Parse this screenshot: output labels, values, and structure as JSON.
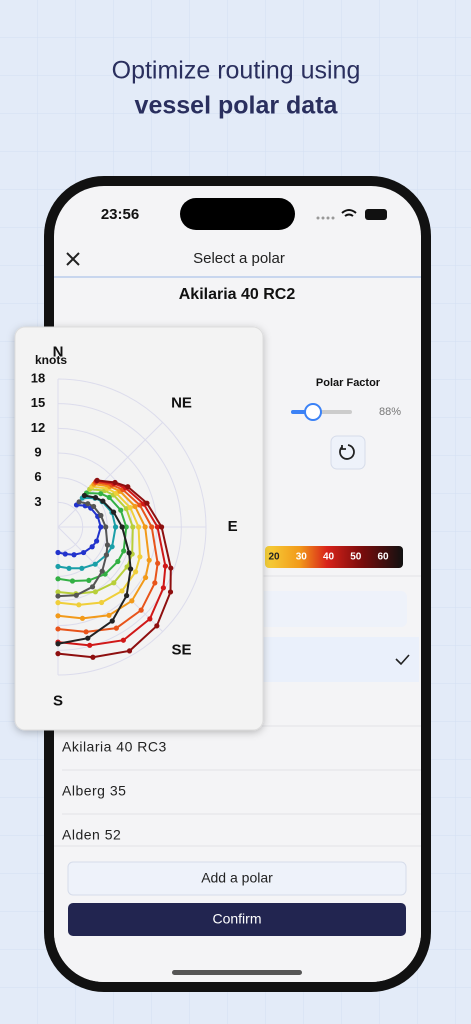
{
  "header": {
    "line1": "Optimize routing using",
    "line2": "vessel polar data"
  },
  "status_bar": {
    "time": "23:56"
  },
  "nav": {
    "title": "Select a polar"
  },
  "polar_name": "Akilaria 40 RC2",
  "polar_factor": {
    "label": "Polar Factor",
    "value": "88%"
  },
  "color_scale": {
    "ticks": [
      20,
      30,
      40,
      50,
      60
    ]
  },
  "list": {
    "items": [
      "Akilaria 40 RC3",
      "Alberg 35",
      "Alden 52"
    ]
  },
  "buttons": {
    "add": "Add a polar",
    "confirm": "Confirm"
  },
  "chart_data": {
    "type": "polar",
    "unit_label": "knots",
    "rlim": [
      0,
      18
    ],
    "rticks": [
      3,
      6,
      9,
      12,
      15,
      18
    ],
    "angle_ticks": [
      {
        "value": 0,
        "label": "N"
      },
      {
        "value": 45,
        "label": "NE"
      },
      {
        "value": 90,
        "label": "E"
      },
      {
        "value": 135,
        "label": "SE"
      },
      {
        "value": 180,
        "label": "S"
      }
    ],
    "angles": [
      40,
      52,
      60,
      75,
      90,
      110,
      120,
      135,
      150,
      165,
      180
    ],
    "series": [
      {
        "color": "#2233cc",
        "values": [
          3.5,
          4.2,
          4.6,
          5.0,
          5.2,
          5.0,
          4.8,
          4.4,
          3.9,
          3.4,
          3.1
        ]
      },
      {
        "color": "#1a9fa8",
        "values": [
          4.6,
          5.7,
          6.2,
          6.8,
          7.0,
          7.0,
          6.8,
          6.4,
          5.8,
          5.2,
          4.8
        ]
      },
      {
        "color": "#33b044",
        "values": [
          5.4,
          6.6,
          7.2,
          7.9,
          8.3,
          8.5,
          8.4,
          8.1,
          7.5,
          6.8,
          6.3
        ]
      },
      {
        "color": "#b8cf3a",
        "values": [
          6.0,
          7.2,
          7.8,
          8.6,
          9.1,
          9.6,
          9.7,
          9.6,
          9.1,
          8.4,
          7.9
        ]
      },
      {
        "color": "#f0cf3a",
        "values": [
          6.4,
          7.6,
          8.2,
          9.1,
          9.8,
          10.6,
          10.9,
          11.0,
          10.6,
          9.8,
          9.2
        ]
      },
      {
        "color": "#f29a1a",
        "values": [
          6.8,
          8.0,
          8.7,
          9.7,
          10.6,
          11.8,
          12.3,
          12.7,
          12.4,
          11.5,
          10.8
        ]
      },
      {
        "color": "#e8541a",
        "values": [
          7.1,
          8.3,
          9.1,
          10.3,
          11.4,
          12.9,
          13.6,
          14.3,
          14.2,
          13.2,
          12.4
        ]
      },
      {
        "color": "#d01818",
        "values": [
          7.3,
          8.6,
          9.5,
          10.8,
          12.1,
          13.9,
          14.8,
          15.8,
          15.9,
          14.9,
          14.0
        ]
      },
      {
        "color": "#8e0f0f",
        "values": [
          7.4,
          8.8,
          9.8,
          11.2,
          12.6,
          14.6,
          15.8,
          17.0,
          17.4,
          16.4,
          15.4
        ]
      },
      {
        "color": "#555555",
        "values": [
          4.0,
          4.6,
          5.0,
          5.4,
          5.8,
          6.4,
          6.8,
          7.6,
          8.4,
          8.6,
          8.4
        ]
      },
      {
        "color": "#222222",
        "values": [
          5.0,
          5.8,
          6.3,
          7.0,
          7.8,
          9.2,
          10.2,
          11.8,
          13.2,
          14.0,
          14.2
        ]
      }
    ]
  }
}
